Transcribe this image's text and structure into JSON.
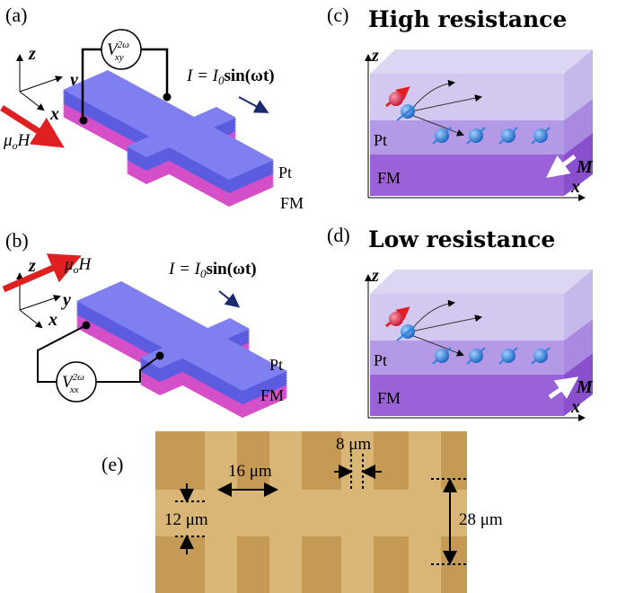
{
  "panels": {
    "a": {
      "label": "(a)",
      "axes": {
        "z": "z",
        "y": "y",
        "x": "x"
      },
      "field": {
        "base": "μ",
        "sub": "o",
        "tail": "H"
      },
      "voltage": {
        "base": "V",
        "sup": "2ω",
        "sub": "xy"
      },
      "current": {
        "lhs": "I = I",
        "sub": "0",
        "rhs": "sin(ωt)"
      },
      "layers": [
        "Pt",
        "FM"
      ]
    },
    "b": {
      "label": "(b)",
      "axes": {
        "z": "z",
        "y": "y",
        "x": "x"
      },
      "field": {
        "base": "μ",
        "sub": "o",
        "tail": "H"
      },
      "voltage": {
        "base": "V",
        "sup": "2ω",
        "sub": "xx"
      },
      "current": {
        "lhs": "I = I",
        "sub": "0",
        "rhs": "sin(ωt)"
      },
      "layers": [
        "Pt",
        "FM"
      ]
    },
    "c": {
      "label": "(c)",
      "title": "High resistance",
      "axes": {
        "z": "z",
        "x": "x"
      },
      "layers": [
        "Pt",
        "FM"
      ],
      "magnetization": "M"
    },
    "d": {
      "label": "(d)",
      "title": "Low resistance",
      "axes": {
        "z": "z",
        "x": "x"
      },
      "layers": [
        "Pt",
        "FM"
      ],
      "magnetization": "M"
    },
    "e": {
      "label": "(e)",
      "dimensions": [
        "8 μm",
        "16 μm",
        "12 μm",
        "28 μm"
      ]
    }
  }
}
